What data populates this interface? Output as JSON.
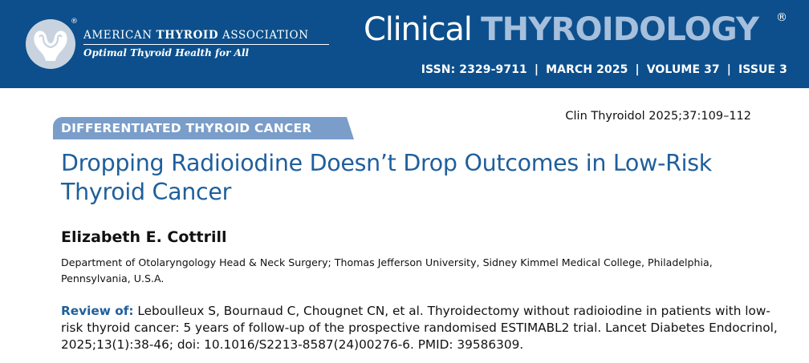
{
  "header": {
    "association": {
      "name_prefix": "AMERICAN ",
      "name_bold": "THYROID",
      "name_suffix": " ASSOCIATION",
      "registered_mark": "®",
      "tagline": "Optimal Thyroid Health for All"
    },
    "journal": {
      "title_part1": "Clinical ",
      "title_part2": "THYROIDOLOGY",
      "registered_mark": "®"
    },
    "issue": {
      "issn": "ISSN: 2329-9711",
      "date": "MARCH 2025",
      "volume": "VOLUME 37",
      "issue": "ISSUE 3",
      "separator": "|"
    },
    "colors": {
      "banner": "#0c4f8c",
      "title_accent": "#a6bfdc"
    }
  },
  "article": {
    "citation": "Clin Thyroidol 2025;37:109–112",
    "section": "DIFFERENTIATED THYROID CANCER",
    "title": "Dropping Radioiodine Doesn’t Drop Outcomes in Low-Risk Thyroid Cancer",
    "author": "Elizabeth E. Cottrill",
    "affiliation": "Department of Otolaryngology Head & Neck Surgery; Thomas Jefferson University, Sidney Kimmel Medical College, Philadelphia, Pennsylvania, U.S.A.",
    "review_label": "Review of:",
    "review_text": "Leboulleux S, Bournaud C, Chougnet CN, et al. Thyroidectomy without radioiodine in patients with low-risk thyroid cancer: 5 years of follow-up of the prospective randomised ESTIMABL2 trial. Lancet Diabetes Endocrinol, 2025;13(1):38-46; doi: 10.1016/S2213-8587(24)00276-6. PMID: 39586309.",
    "colors": {
      "title": "#1f5f9c",
      "section_tag": "#7a9ec9"
    }
  }
}
